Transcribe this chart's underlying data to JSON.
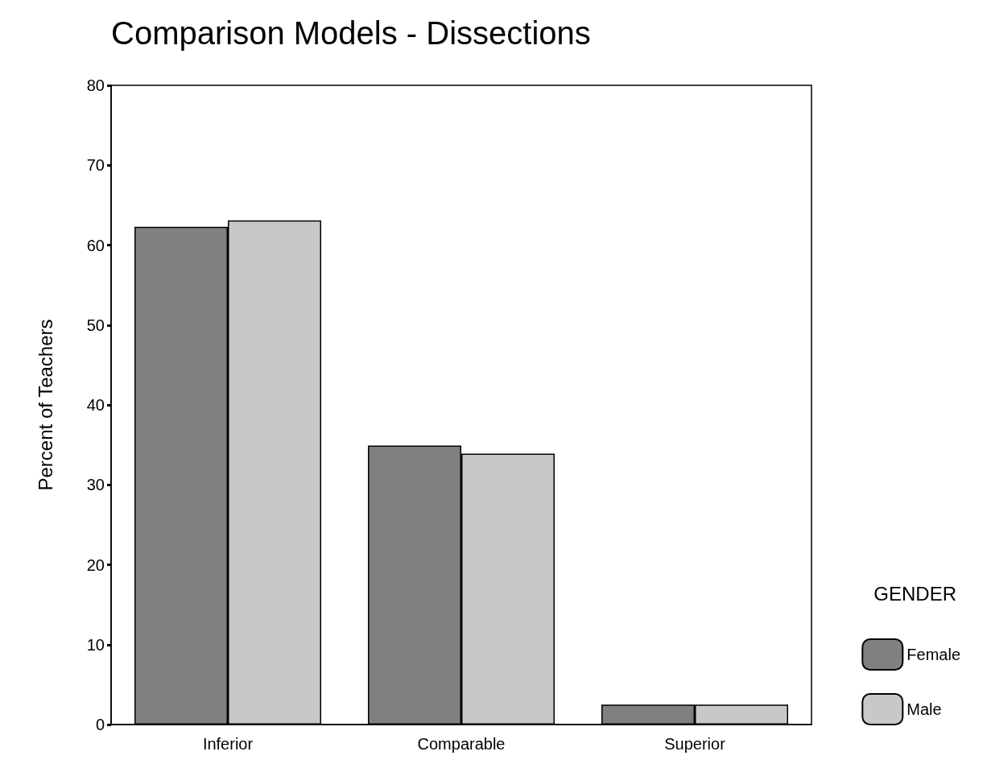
{
  "chart_data": {
    "type": "bar",
    "title": "Comparison Models - Dissections",
    "ylabel": "Percent of Teachers",
    "legend_title": "GENDER",
    "categories": [
      "Inferior",
      "Comparable",
      "Superior"
    ],
    "series": [
      {
        "name": "Female",
        "color": "#808080",
        "values": [
          62.3,
          34.9,
          2.5
        ]
      },
      {
        "name": "Male",
        "color": "#c8c8c8",
        "values": [
          63.1,
          33.9,
          2.5
        ]
      }
    ],
    "ylim": [
      0,
      80
    ],
    "yticks": [
      0,
      10,
      20,
      30,
      40,
      50,
      60,
      70,
      80
    ],
    "grid": false,
    "legend": "right"
  }
}
